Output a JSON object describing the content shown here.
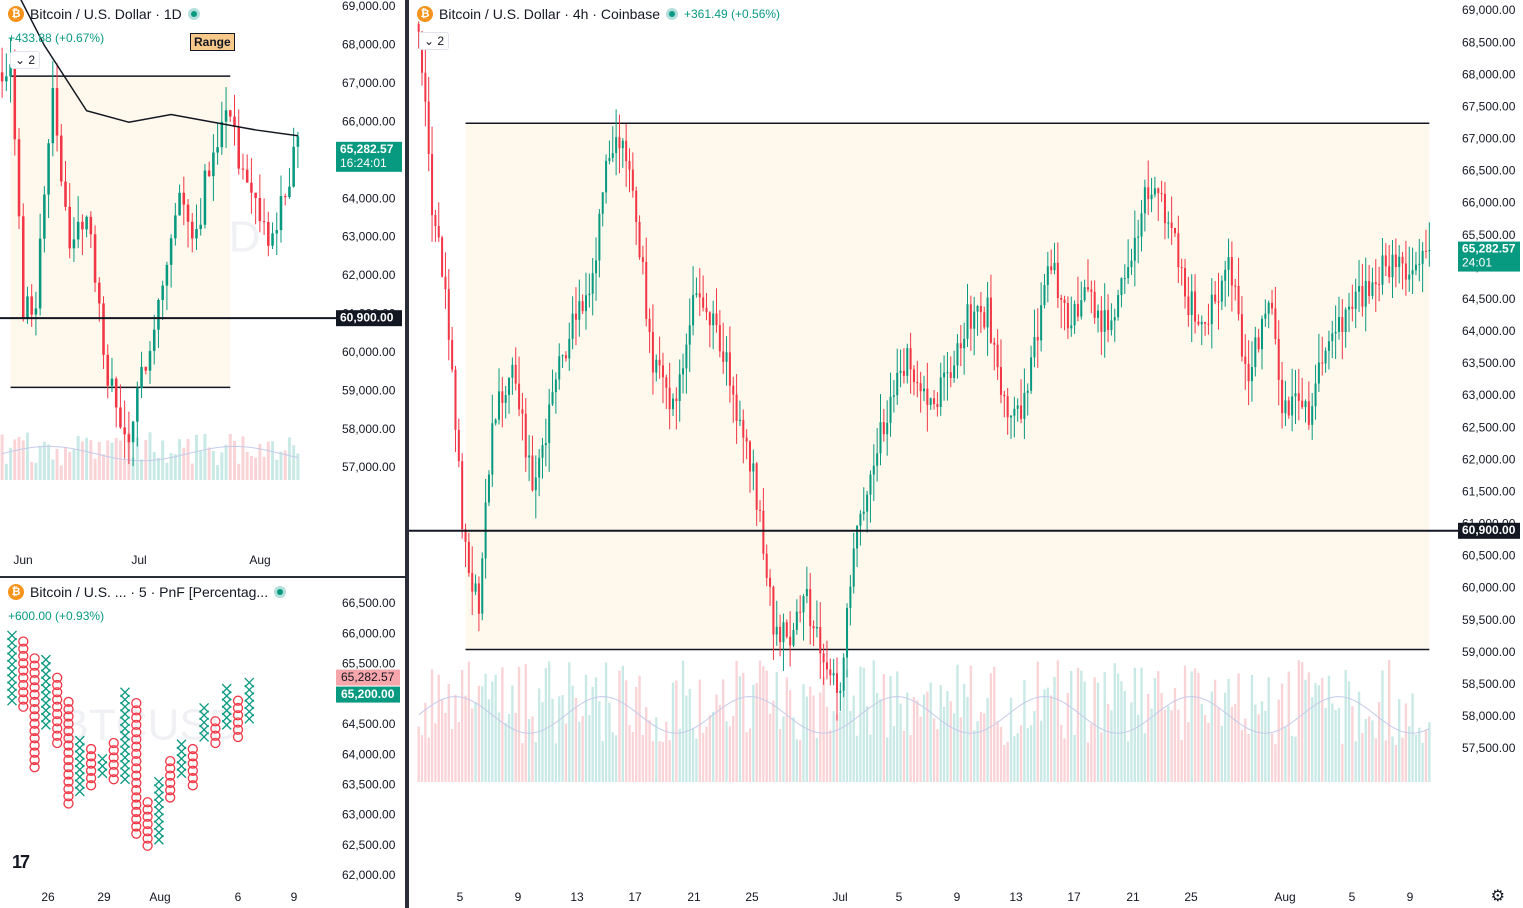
{
  "colors": {
    "up": "#089981",
    "down": "#f23645",
    "range_fill": "#fff8ec",
    "line": "#131722",
    "volume_up": "#b2dfdb",
    "volume_down": "#f7c1c5",
    "volume_ma": "#c5cae9",
    "price_tag": "#089981",
    "level_tag": "#131722",
    "pnf_box_tag": "#f7a6ab"
  },
  "watermark": "BTCUSD",
  "chart_1d": {
    "symbol": "Bitcoin / U.S. Dollar · 1D",
    "change": "+433.88 (+0.67%)",
    "collapse": "2",
    "range_label": "Range",
    "price_tag": "65,282.57",
    "countdown": "16:24:01",
    "level_tag": "60,900.00",
    "y_ticks": [
      "69,000.00",
      "68,000.00",
      "67,000.00",
      "66,000.00",
      "65,000.00",
      "64,000.00",
      "63,000.00",
      "62,000.00",
      "61,000.00",
      "60,000.00",
      "59,000.00",
      "58,000.00",
      "57,000.00"
    ],
    "x_ticks": [
      "Jun",
      "Jul",
      "Aug"
    ]
  },
  "chart_pnf": {
    "symbol": "Bitcoin / U.S. ... · 5 · PnF [Percentag...",
    "change": "+600.00 (+0.93%)",
    "price_tag": "65,282.57",
    "box_tag": "65,200.00",
    "y_ticks": [
      "66,500.00",
      "66,000.00",
      "65,500.00",
      "65,000.00",
      "64,500.00",
      "64,000.00",
      "63,500.00",
      "63,000.00",
      "62,500.00",
      "62,000.00"
    ],
    "x_ticks": [
      "26",
      "29",
      "Aug",
      "6",
      "9"
    ]
  },
  "chart_4h": {
    "symbol": "Bitcoin / U.S. Dollar · 4h · Coinbase",
    "change": "+361.49 (+0.56%)",
    "collapse": "2",
    "price_tag": "65,282.57",
    "countdown": "24:01",
    "level_tag": "60,900.00",
    "y_ticks": [
      "69,000.00",
      "68,500.00",
      "68,000.00",
      "67,500.00",
      "67,000.00",
      "66,500.00",
      "66,000.00",
      "65,500.00",
      "65,000.00",
      "64,500.00",
      "64,000.00",
      "63,500.00",
      "63,000.00",
      "62,500.00",
      "62,000.00",
      "61,500.00",
      "61,000.00",
      "60,500.00",
      "60,000.00",
      "59,500.00",
      "59,000.00",
      "58,500.00",
      "58,000.00",
      "57,500.00"
    ],
    "x_ticks": [
      "5",
      "9",
      "13",
      "17",
      "21",
      "25",
      "Jul",
      "5",
      "9",
      "13",
      "17",
      "21",
      "25",
      "Aug",
      "5",
      "9"
    ]
  },
  "chart_data": [
    {
      "type": "candlestick",
      "title": "Bitcoin / U.S. Dollar · 1D",
      "ylim": [
        56500,
        69000
      ],
      "levels": {
        "range_top": 67200,
        "range_bottom": 59100,
        "support": 60900
      },
      "anchors": [
        [
          0,
          67300
        ],
        [
          2,
          67900
        ],
        [
          5,
          61000
        ],
        [
          8,
          61500
        ],
        [
          12,
          67000
        ],
        [
          16,
          62500
        ],
        [
          20,
          63800
        ],
        [
          24,
          60000
        ],
        [
          28,
          58000
        ],
        [
          31,
          57800
        ],
        [
          33,
          59500
        ],
        [
          38,
          61800
        ],
        [
          42,
          64000
        ],
        [
          46,
          63200
        ],
        [
          50,
          65500
        ],
        [
          54,
          66500
        ],
        [
          57,
          64400
        ],
        [
          60,
          63600
        ],
        [
          64,
          62800
        ],
        [
          67,
          64200
        ],
        [
          70,
          65300
        ]
      ],
      "x_range": [
        "May 27",
        "Aug 9"
      ],
      "moving_average": [
        [
          3,
          69500
        ],
        [
          10,
          68000
        ],
        [
          20,
          66300
        ],
        [
          30,
          66000
        ],
        [
          40,
          66200
        ],
        [
          50,
          66000
        ],
        [
          60,
          65800
        ],
        [
          70,
          65650
        ]
      ],
      "price": 65282.57
    },
    {
      "type": "pnf",
      "title": "Bitcoin / U.S. ... · 5 · PnF [Percentag...",
      "ylim": [
        61800,
        66900
      ],
      "columns": [
        {
          "kind": "X",
          "low": 64900,
          "high": 66000
        },
        {
          "kind": "O",
          "low": 64800,
          "high": 65900
        },
        {
          "kind": "O",
          "low": 63800,
          "high": 65600
        },
        {
          "kind": "X",
          "low": 64500,
          "high": 65600
        },
        {
          "kind": "O",
          "low": 64200,
          "high": 65300
        },
        {
          "kind": "O",
          "low": 63200,
          "high": 64900
        },
        {
          "kind": "X",
          "low": 63400,
          "high": 64300
        },
        {
          "kind": "O",
          "low": 63500,
          "high": 64200
        },
        {
          "kind": "X",
          "low": 63700,
          "high": 64000
        },
        {
          "kind": "O",
          "low": 63600,
          "high": 64200
        },
        {
          "kind": "X",
          "low": 63600,
          "high": 65100
        },
        {
          "kind": "O",
          "low": 62700,
          "high": 64900
        },
        {
          "kind": "O",
          "low": 62500,
          "high": 63300
        },
        {
          "kind": "X",
          "low": 62600,
          "high": 63600
        },
        {
          "kind": "O",
          "low": 63300,
          "high": 64000
        },
        {
          "kind": "X",
          "low": 63700,
          "high": 64200
        },
        {
          "kind": "O",
          "low": 63500,
          "high": 64100
        },
        {
          "kind": "X",
          "low": 64300,
          "high": 64800
        },
        {
          "kind": "O",
          "low": 64200,
          "high": 64600
        },
        {
          "kind": "X",
          "low": 64500,
          "high": 65100
        },
        {
          "kind": "O",
          "low": 64300,
          "high": 64900
        },
        {
          "kind": "X",
          "low": 64600,
          "high": 65200
        }
      ],
      "price": 65282.57
    },
    {
      "type": "candlestick",
      "title": "Bitcoin / U.S. Dollar · 4h · Coinbase",
      "ylim": [
        57000,
        69100
      ],
      "levels": {
        "range_top": 67250,
        "range_bottom": 59050,
        "support": 60900
      },
      "anchors": [
        [
          0,
          68800
        ],
        [
          4,
          66000
        ],
        [
          8,
          64500
        ],
        [
          14,
          60500
        ],
        [
          18,
          59800
        ],
        [
          22,
          62500
        ],
        [
          28,
          63500
        ],
        [
          34,
          61500
        ],
        [
          40,
          63000
        ],
        [
          46,
          64200
        ],
        [
          52,
          64800
        ],
        [
          56,
          66500
        ],
        [
          60,
          67000
        ],
        [
          64,
          66200
        ],
        [
          70,
          63500
        ],
        [
          76,
          62800
        ],
        [
          82,
          64500
        ],
        [
          88,
          64300
        ],
        [
          94,
          63000
        ],
        [
          100,
          61800
        ],
        [
          106,
          59500
        ],
        [
          110,
          59200
        ],
        [
          116,
          59800
        ],
        [
          122,
          58600
        ],
        [
          126,
          58400
        ],
        [
          130,
          60500
        ],
        [
          134,
          61600
        ],
        [
          140,
          62800
        ],
        [
          146,
          63500
        ],
        [
          152,
          62900
        ],
        [
          158,
          63200
        ],
        [
          164,
          64200
        ],
        [
          170,
          64300
        ],
        [
          176,
          62500
        ],
        [
          182,
          63000
        ],
        [
          188,
          65200
        ],
        [
          194,
          64300
        ],
        [
          200,
          64600
        ],
        [
          206,
          64000
        ],
        [
          212,
          65100
        ],
        [
          218,
          66300
        ],
        [
          224,
          65800
        ],
        [
          230,
          64500
        ],
        [
          236,
          64200
        ],
        [
          242,
          65100
        ],
        [
          248,
          63200
        ],
        [
          254,
          64600
        ],
        [
          258,
          62700
        ],
        [
          262,
          63000
        ],
        [
          266,
          62800
        ],
        [
          272,
          64000
        ],
        [
          278,
          64200
        ],
        [
          284,
          64800
        ],
        [
          290,
          65100
        ],
        [
          296,
          65050
        ],
        [
          302,
          65280
        ]
      ],
      "x_range": [
        "Jun 3",
        "Aug 9"
      ],
      "price": 65282.57
    }
  ]
}
